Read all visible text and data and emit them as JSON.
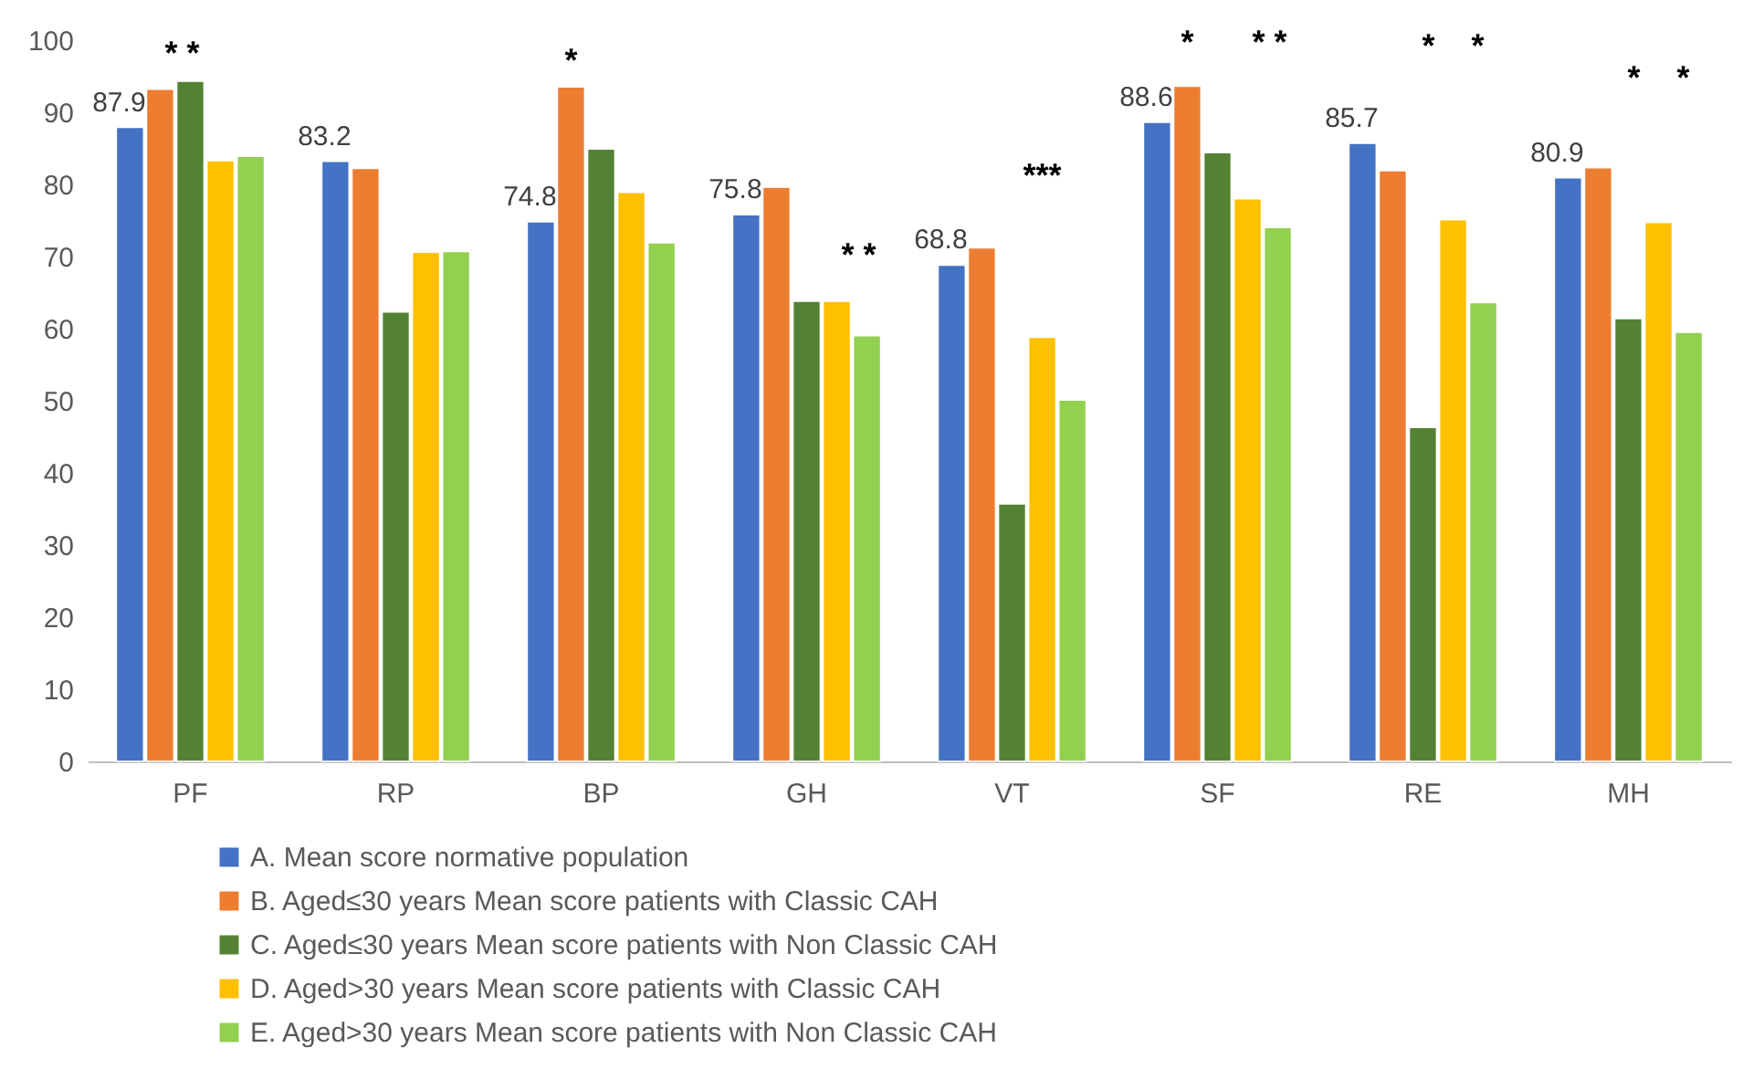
{
  "chart_data": {
    "type": "bar",
    "categories": [
      "PF",
      "RP",
      "BP",
      "GH",
      "VT",
      "SF",
      "RE",
      "MH"
    ],
    "series": [
      {
        "name": "A. Mean score normative population",
        "color": "#4472c4",
        "values": [
          87.9,
          83.2,
          74.8,
          75.8,
          68.8,
          88.6,
          85.7,
          80.9
        ],
        "value_labels": [
          "87.9",
          "83.2",
          "74.8",
          "75.8",
          "68.8",
          "88.6",
          "85.7",
          "80.9"
        ]
      },
      {
        "name": "B. Aged≤30 years Mean score patients with Classic CAH",
        "color": "#ed7d31",
        "values": [
          93.2,
          82.2,
          93.5,
          79.6,
          71.2,
          93.6,
          81.9,
          82.3
        ]
      },
      {
        "name": "C. Aged≤30 years Mean score patients with Non Classic CAH",
        "color": "#548235",
        "values": [
          94.3,
          62.3,
          84.9,
          63.8,
          35.7,
          84.4,
          46.3,
          61.4
        ]
      },
      {
        "name": "D. Aged>30 years Mean score patients with Classic CAH",
        "color": "#ffc000",
        "values": [
          83.3,
          70.6,
          78.9,
          63.8,
          58.8,
          78.0,
          75.1,
          74.7
        ]
      },
      {
        "name": "E. Aged>30 years Mean score patients with Non Classic CAH",
        "color": "#92d050",
        "values": [
          83.9,
          70.7,
          71.9,
          59.0,
          50.1,
          74.0,
          63.6,
          59.5
        ]
      }
    ],
    "ylim": [
      0,
      100
    ],
    "yticks": [
      0,
      10,
      20,
      30,
      40,
      50,
      60,
      70,
      80,
      90,
      100
    ],
    "grid": false,
    "legend": "bottom",
    "annotations": [
      "* *",
      "*",
      "* *",
      "***",
      "*",
      "* *",
      "*    *",
      "*    *"
    ]
  }
}
